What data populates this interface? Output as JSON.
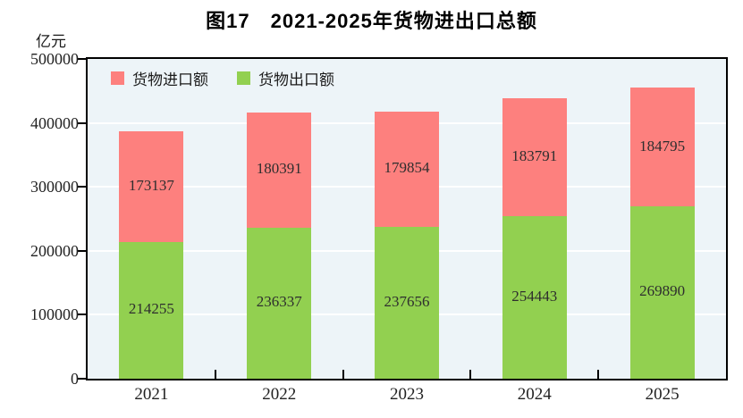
{
  "title": "图17　2021-2025年货物进出口总额",
  "unit_label": "亿元",
  "chart_data": {
    "type": "bar",
    "stacked": true,
    "title": "图17　2021-2025年货物进出口总额",
    "ylabel": "亿元",
    "xlabel": "",
    "categories": [
      "2021",
      "2022",
      "2023",
      "2024",
      "2025"
    ],
    "series": [
      {
        "name": "货物进口额",
        "color": "#FD807E",
        "values": [
          173137,
          180391,
          179854,
          183791,
          184795
        ],
        "stack_level": 2
      },
      {
        "name": "货物出口额",
        "color": "#92D050",
        "values": [
          214255,
          236337,
          237656,
          254443,
          269890
        ],
        "stack_level": 1
      }
    ],
    "totals": [
      387392,
      416728,
      417510,
      438234,
      454685
    ],
    "ylim": [
      0,
      500000
    ],
    "yticks": [
      0,
      100000,
      200000,
      300000,
      400000,
      500000
    ],
    "grid": true,
    "gridline_color": "#FFFFFF",
    "plot_background": "#EDF4F8",
    "legend_position": "top-left-inside",
    "legend": [
      "货物进口额",
      "货物出口额"
    ]
  }
}
